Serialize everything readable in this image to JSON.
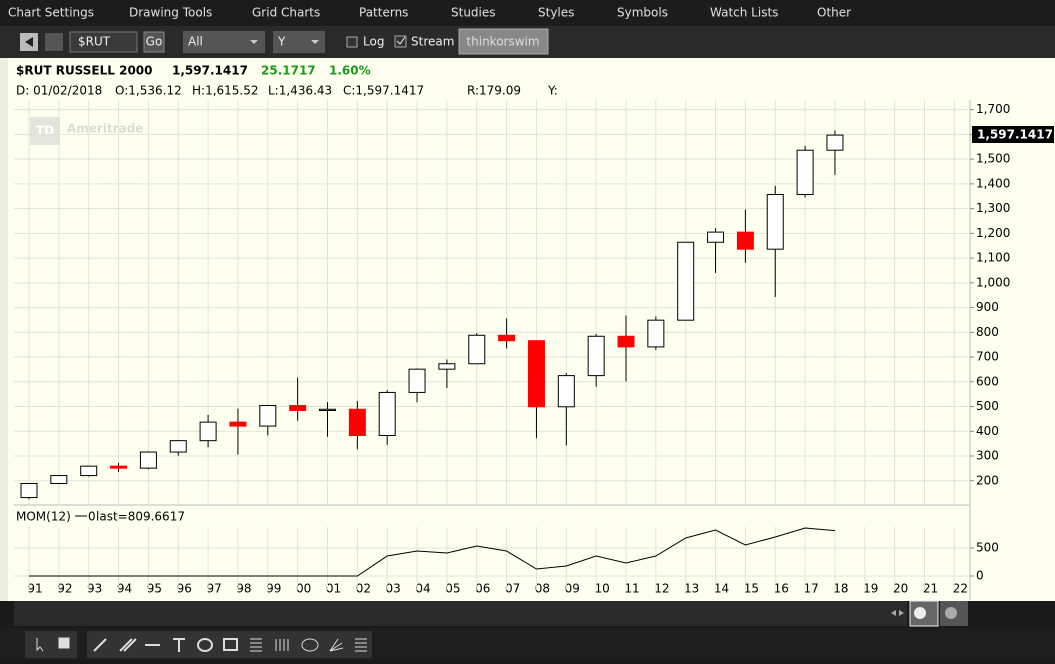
{
  "menu": [
    "Chart Settings",
    "Drawing Tools",
    "Grid Charts",
    "Patterns",
    "Studies",
    "Styles",
    "Symbols",
    "Watch Lists",
    "Other"
  ],
  "toolbar": {
    "symbol": "$RUT",
    "go": "Go",
    "range": "All",
    "interval": "Y",
    "log": "Log",
    "stream": "Stream",
    "brand": "thinkorswim"
  },
  "header": {
    "symbol": "$RUT RUSSELL 2000",
    "last": "1,597.1417",
    "change": "25.1717",
    "change_pct": "1.60%",
    "date": "D: 01/02/2018",
    "open": "O:1,536.12",
    "high": "H:1,615.52",
    "low": "L:1,436.43",
    "close": "C:1,597.1417",
    "range": "R:179.09",
    "y": "Y:"
  },
  "watermark": {
    "logo": "TD",
    "text": "Ameritrade"
  },
  "chart_data": [
    {
      "type": "candlestick",
      "categories": [
        "91",
        "92",
        "93",
        "94",
        "95",
        "96",
        "97",
        "98",
        "99",
        "00",
        "01",
        "02",
        "03",
        "04",
        "05",
        "06",
        "07",
        "08",
        "09",
        "10",
        "11",
        "12",
        "13",
        "14",
        "15",
        "16",
        "17",
        "18",
        "19",
        "20",
        "21",
        "22"
      ],
      "open": [
        132,
        189,
        221,
        259,
        251,
        316,
        362,
        437,
        421,
        504,
        484,
        489,
        383,
        557,
        651,
        673,
        788,
        766,
        499,
        625,
        784,
        741,
        849,
        1164,
        1205,
        1136,
        1357,
        1536.12,
        null,
        null,
        null,
        null
      ],
      "high": [
        190,
        221,
        260,
        272,
        319,
        365,
        466,
        491,
        507,
        617,
        518,
        522,
        566,
        654,
        690,
        797,
        856,
        767,
        635,
        793,
        868,
        864,
        1164,
        1221,
        1296,
        1392,
        1553,
        1615.52,
        null,
        null,
        null,
        null
      ],
      "low": [
        125,
        186,
        217,
        235,
        246,
        301,
        335,
        306,
        383,
        443,
        378,
        327,
        345,
        517,
        575,
        671,
        735,
        372,
        343,
        580,
        601,
        729,
        849,
        1040,
        1081,
        943,
        1345,
        1436.43,
        null,
        null,
        null,
        null
      ],
      "close": [
        189,
        221,
        259,
        251,
        316,
        362,
        437,
        421,
        504,
        484,
        489,
        383,
        557,
        651,
        673,
        788,
        766,
        499,
        625,
        784,
        741,
        849,
        1164,
        1205,
        1136,
        1357,
        1536,
        1597.1417,
        null,
        null,
        null,
        null
      ],
      "up_color": "#ffffff",
      "down_color": "#ff0000",
      "ylim": [
        102,
        1739
      ],
      "yticks": [
        {
          "value": 200,
          "label": "200"
        },
        {
          "value": 300,
          "label": "300"
        },
        {
          "value": 400,
          "label": "400"
        },
        {
          "value": 500,
          "label": "500"
        },
        {
          "value": 600,
          "label": "600"
        },
        {
          "value": 700,
          "label": "700"
        },
        {
          "value": 800,
          "label": "800"
        },
        {
          "value": 900,
          "label": "900"
        },
        {
          "value": 1000,
          "label": "1,000"
        },
        {
          "value": 1100,
          "label": "1,100"
        },
        {
          "value": 1200,
          "label": "1,200"
        },
        {
          "value": 1300,
          "label": "1,300"
        },
        {
          "value": 1400,
          "label": "1,400"
        },
        {
          "value": 1500,
          "label": "1,500"
        },
        {
          "value": 1600,
          "label": "1,600"
        },
        {
          "value": 1700,
          "label": "1,700"
        }
      ],
      "grid": true
    },
    {
      "type": "line",
      "title": "MOM(12)",
      "title_value": "0",
      "annotation": "last=809.6617",
      "values": [
        0,
        0,
        0,
        0,
        0,
        0,
        0,
        0,
        0,
        0,
        0,
        0,
        357,
        446,
        411,
        536,
        446,
        125,
        179,
        357,
        232,
        357,
        679,
        821,
        554,
        696,
        857,
        809.6617,
        null,
        null,
        null,
        null
      ],
      "color": "#000000",
      "ylim": [
        -250,
        875
      ],
      "yticks": [
        0,
        500
      ],
      "grid": true
    }
  ]
}
